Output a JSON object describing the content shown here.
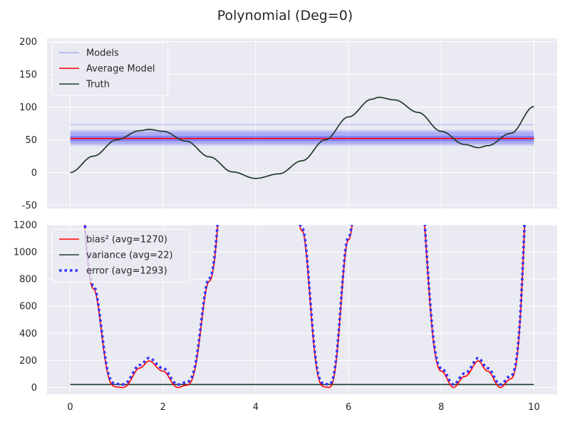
{
  "figure": {
    "title": "Polynomial (Deg=0)",
    "background": "#ffffff",
    "axes_face": "#eaeaf2",
    "grid_color": "#ffffff"
  },
  "chart_data": [
    {
      "type": "line",
      "xlim": [
        -0.5,
        10.5
      ],
      "ylim": [
        -55,
        205
      ],
      "grid": true,
      "legend_position": "top-left",
      "x_ticks": [
        0,
        2,
        4,
        6,
        8,
        10
      ],
      "y_ticks": [
        -50,
        0,
        50,
        100,
        150,
        200
      ],
      "series": [
        {
          "name": "Models",
          "color": "#0000ff",
          "style": "thin lines, low opacity",
          "constant_levels": [
            42,
            44,
            45,
            46,
            47,
            48,
            48.5,
            49,
            49.5,
            50,
            50.5,
            51,
            51.5,
            52,
            52.5,
            53,
            53.5,
            54,
            54.5,
            55,
            55.5,
            56,
            57,
            58,
            59,
            60,
            61,
            62,
            64,
            73
          ]
        },
        {
          "name": "Average Model",
          "color": "#ff0000",
          "constant_value": 52
        },
        {
          "name": "Truth",
          "color": "#1f3a2a",
          "x": [
            0,
            0.5,
            1,
            1.5,
            1.7,
            2,
            2.5,
            3,
            3.5,
            4,
            4.5,
            5,
            5.5,
            6,
            6.5,
            6.65,
            7,
            7.5,
            8,
            8.5,
            8.8,
            9,
            9.5,
            10
          ],
          "y": [
            0,
            25,
            50,
            64,
            66,
            63,
            48,
            24,
            1,
            -9,
            -2,
            18,
            50,
            85,
            112,
            115,
            111,
            92,
            63,
            43,
            38,
            41,
            60,
            101
          ]
        }
      ]
    },
    {
      "type": "line",
      "xlim": [
        -0.5,
        10.5
      ],
      "ylim": [
        -50,
        1200
      ],
      "grid": true,
      "legend_position": "top-left",
      "x_ticks": [
        0,
        2,
        4,
        6,
        8,
        10
      ],
      "y_ticks": [
        0,
        200,
        400,
        600,
        800,
        1000,
        1200
      ],
      "series": [
        {
          "name": "bias² (avg=1270)",
          "color": "#ff0000",
          "derived_from": "squared difference between Average Model and Truth"
        },
        {
          "name": "variance (avg=22)",
          "color": "#1f3a2a",
          "constant_value": 22
        },
        {
          "name": "error (avg=1293)",
          "color": "#3333ff",
          "style": "dotted",
          "derived_from": "bias² + variance"
        }
      ]
    }
  ]
}
